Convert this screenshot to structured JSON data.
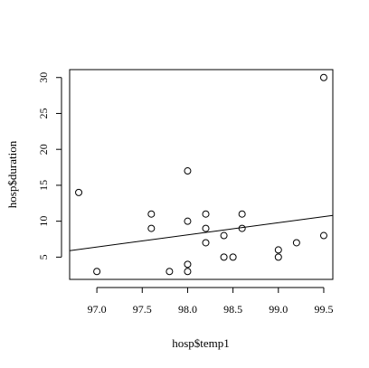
{
  "chart_data": {
    "type": "scatter",
    "title": "",
    "xlabel": "hosp$temp1",
    "ylabel": "hosp$duration",
    "xlim": [
      96.7,
      99.6
    ],
    "ylim": [
      1.9,
      31.1
    ],
    "x_ticks": [
      97.0,
      97.5,
      98.0,
      98.5,
      99.0,
      99.5
    ],
    "x_tick_labels": [
      "97.0",
      "97.5",
      "98.0",
      "98.5",
      "99.0",
      "99.5"
    ],
    "y_ticks": [
      5,
      10,
      15,
      20,
      25,
      30
    ],
    "y_tick_labels": [
      "5",
      "10",
      "15",
      "20",
      "25",
      "30"
    ],
    "grid": false,
    "legend": false,
    "points": [
      {
        "x": 96.8,
        "y": 14
      },
      {
        "x": 97.0,
        "y": 3
      },
      {
        "x": 97.6,
        "y": 11
      },
      {
        "x": 97.6,
        "y": 9
      },
      {
        "x": 97.8,
        "y": 3
      },
      {
        "x": 98.0,
        "y": 17
      },
      {
        "x": 98.0,
        "y": 10
      },
      {
        "x": 98.0,
        "y": 4
      },
      {
        "x": 98.0,
        "y": 3
      },
      {
        "x": 98.2,
        "y": 11
      },
      {
        "x": 98.2,
        "y": 9
      },
      {
        "x": 98.2,
        "y": 7
      },
      {
        "x": 98.4,
        "y": 8
      },
      {
        "x": 98.4,
        "y": 5
      },
      {
        "x": 98.5,
        "y": 5
      },
      {
        "x": 98.6,
        "y": 11
      },
      {
        "x": 98.6,
        "y": 9
      },
      {
        "x": 99.0,
        "y": 6
      },
      {
        "x": 99.0,
        "y": 5
      },
      {
        "x": 99.2,
        "y": 7
      },
      {
        "x": 99.5,
        "y": 30
      },
      {
        "x": 99.5,
        "y": 8
      }
    ],
    "regression_line": {
      "x": [
        96.7,
        99.6
      ],
      "y": [
        5.9,
        10.8
      ]
    },
    "colors": {
      "points": "#000000",
      "line": "#000000",
      "axes": "#000000",
      "background": "#ffffff"
    }
  }
}
